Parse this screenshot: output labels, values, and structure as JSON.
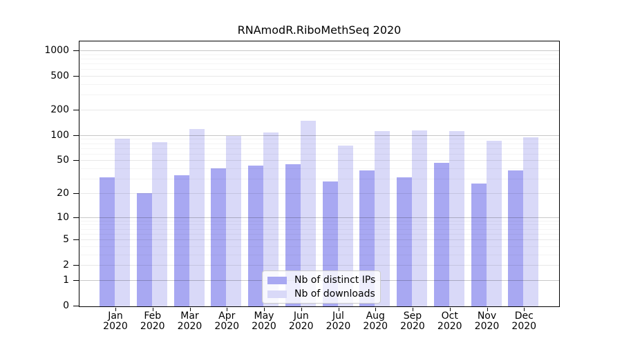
{
  "chart_data": {
    "type": "bar",
    "title": "RNAmodR.RiboMethSeq 2020",
    "categories": [
      "Jan",
      "Feb",
      "Mar",
      "Apr",
      "May",
      "Jun",
      "Jul",
      "Aug",
      "Sep",
      "Oct",
      "Nov",
      "Dec"
    ],
    "x_year_label": "2020",
    "series": [
      {
        "name": "Nb of distinct IPs",
        "color": "#a8a8f2",
        "values": [
          31,
          20,
          33,
          40,
          43,
          45,
          28,
          38,
          31,
          47,
          26,
          38
        ]
      },
      {
        "name": "Nb of downloads",
        "color": "#d9d9f8",
        "values": [
          91,
          83,
          118,
          98,
          108,
          148,
          75,
          112,
          114,
          112,
          86,
          94
        ]
      }
    ],
    "y_axis": {
      "scale": "log1p",
      "ticks": [
        0,
        1,
        2,
        5,
        10,
        20,
        50,
        100,
        200,
        500,
        1000
      ],
      "minor_ticks": [
        3,
        4,
        6,
        7,
        8,
        9,
        30,
        40,
        60,
        70,
        80,
        90,
        300,
        400,
        600,
        700,
        800,
        900
      ],
      "major_gridline_values": [
        1,
        10,
        100,
        1000
      ]
    },
    "legend_position": "lower center inside",
    "grid": "on",
    "colors": {
      "axis": "#000000",
      "grid_major": "rgba(0,0,0,0.22)",
      "grid_mid": "rgba(0,0,0,0.09)",
      "grid_minor": "rgba(0,0,0,0.045)",
      "background": "#ffffff"
    }
  }
}
